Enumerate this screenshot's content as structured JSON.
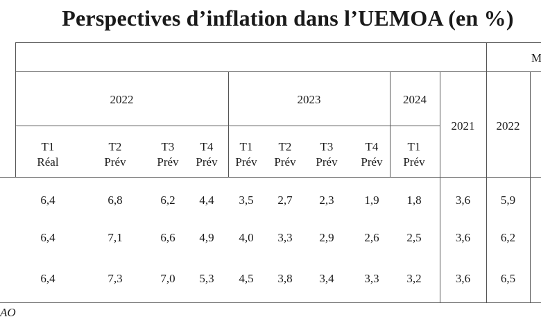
{
  "title": "Perspectives d’inflation dans l’UEMOA (en %)",
  "top_right_label_fragment": "M",
  "source_fragment": "AO",
  "headers": {
    "year_2022": "2022",
    "year_2023": "2023",
    "year_2024": "2024",
    "year_2021_col": "2021",
    "year_2022_col": "2022"
  },
  "quarters": [
    {
      "q": "T1",
      "kind": "Réal"
    },
    {
      "q": "T2",
      "kind": "Prév"
    },
    {
      "q": "T3",
      "kind": "Prév"
    },
    {
      "q": "T4",
      "kind": "Prév"
    },
    {
      "q": "T1",
      "kind": "Prév"
    },
    {
      "q": "T2",
      "kind": "Prév"
    },
    {
      "q": "T3",
      "kind": "Prév"
    },
    {
      "q": "T4",
      "kind": "Prév"
    },
    {
      "q": "T1",
      "kind": "Prév"
    }
  ],
  "rows": [
    [
      "6,4",
      "6,8",
      "6,2",
      "4,4",
      "3,5",
      "2,7",
      "2,3",
      "1,9",
      "1,8",
      "3,6",
      "5,9"
    ],
    [
      "6,4",
      "7,1",
      "6,6",
      "4,9",
      "4,0",
      "3,3",
      "2,9",
      "2,6",
      "2,5",
      "3,6",
      "6,2"
    ],
    [
      "6,4",
      "7,3",
      "7,0",
      "5,3",
      "4,5",
      "3,8",
      "3,4",
      "3,3",
      "3,2",
      "3,6",
      "6,5"
    ]
  ]
}
